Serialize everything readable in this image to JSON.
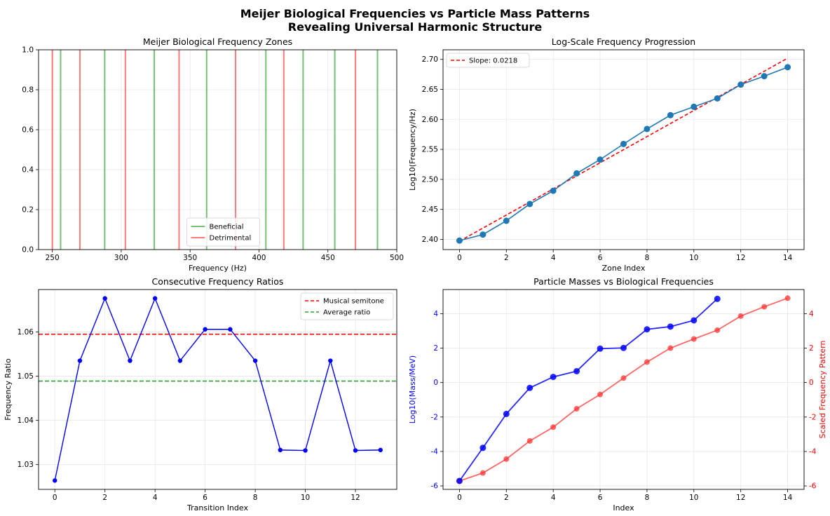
{
  "figure": {
    "title_line1": "Meijer Biological Frequencies vs Particle Mass Patterns",
    "title_line2": "Revealing Universal Harmonic Structure"
  },
  "chart_data": [
    {
      "type": "vlines",
      "title": "Meijer Biological Frequency Zones",
      "xlabel": "Frequency (Hz)",
      "ylabel": "",
      "xlim": [
        240,
        500
      ],
      "ylim": [
        0,
        1
      ],
      "xticks": [
        250,
        300,
        350,
        400,
        450,
        500
      ],
      "yticks": [
        0.0,
        0.2,
        0.4,
        0.6,
        0.8,
        1.0
      ],
      "grid": true,
      "legend_position": "lower center",
      "series": [
        {
          "name": "Beneficial",
          "color": "#2ca02c",
          "x": [
            256,
            288,
            324,
            362,
            405,
            432,
            455,
            486
          ]
        },
        {
          "name": "Detrimental",
          "color": "#ff3333",
          "x": [
            250,
            270,
            303,
            342,
            383,
            418,
            470
          ]
        }
      ]
    },
    {
      "type": "line",
      "title": "Log-Scale Frequency Progression",
      "xlabel": "Zone Index",
      "ylabel": "Log10(Frequency/Hz)",
      "xlim": [
        -0.7,
        14.7
      ],
      "ylim": [
        2.383,
        2.716
      ],
      "xticks": [
        0,
        2,
        4,
        6,
        8,
        10,
        12,
        14
      ],
      "yticks": [
        2.4,
        2.45,
        2.5,
        2.55,
        2.6,
        2.65,
        2.7
      ],
      "grid": true,
      "legend_position": "top-left",
      "series": [
        {
          "name": "",
          "color": "#1f77b4",
          "x": [
            0,
            1,
            2,
            3,
            4,
            5,
            6,
            7,
            8,
            9,
            10,
            11,
            12,
            13,
            14
          ],
          "y": [
            2.398,
            2.408,
            2.431,
            2.459,
            2.481,
            2.51,
            2.533,
            2.559,
            2.584,
            2.607,
            2.621,
            2.635,
            2.658,
            2.672,
            2.687
          ]
        },
        {
          "name": "Slope: 0.0218",
          "color": "#ff0000",
          "dashed": true,
          "x": [
            0,
            14
          ],
          "y": [
            2.397,
            2.702
          ]
        }
      ]
    },
    {
      "type": "line",
      "title": "Consecutive Frequency Ratios",
      "xlabel": "Transition Index",
      "ylabel": "Frequency Ratio",
      "xlim": [
        -0.65,
        13.65
      ],
      "ylim": [
        1.0244,
        1.0696
      ],
      "xticks": [
        0,
        2,
        4,
        6,
        8,
        10,
        12
      ],
      "yticks": [
        1.03,
        1.04,
        1.05,
        1.06
      ],
      "grid": true,
      "legend_position": "top-right",
      "series": [
        {
          "name": "",
          "color": "#0000ff",
          "x": [
            0,
            1,
            2,
            3,
            4,
            5,
            6,
            7,
            8,
            9,
            10,
            11,
            12,
            13
          ],
          "y": [
            1.0264,
            1.0535,
            1.0676,
            1.0535,
            1.0676,
            1.0535,
            1.0606,
            1.0606,
            1.0535,
            1.0333,
            1.0332,
            1.0535,
            1.0332,
            1.0333
          ]
        }
      ],
      "hlines": [
        {
          "name": "Musical semitone",
          "color": "#ff0000",
          "y": 1.0595
        },
        {
          "name": "Average ratio",
          "color": "#2ca02c",
          "y": 1.0489
        }
      ]
    },
    {
      "type": "dual-axis-line",
      "title": "Particle Masses vs Biological Frequencies",
      "xlabel": "Index",
      "ylabel": "Log10(Mass/MeV)",
      "ylabel_right": "Scaled Frequency Pattern",
      "xlim": [
        -0.7,
        14.7
      ],
      "ylim": [
        -6.2,
        5.4
      ],
      "ylim_right": [
        -6.2,
        5.4
      ],
      "xticks": [
        0,
        2,
        4,
        6,
        8,
        10,
        12,
        14
      ],
      "yticks": [
        -6,
        -4,
        -2,
        0,
        2,
        4
      ],
      "yticks_right": [
        -6,
        -4,
        -2,
        0,
        2,
        4
      ],
      "grid": true,
      "series": [
        {
          "name": "Log10(Mass/MeV)",
          "color": "#0000ff",
          "axis": "left",
          "x": [
            0,
            1,
            2,
            3,
            4,
            5,
            6,
            7,
            8,
            9,
            10,
            11
          ],
          "y": [
            -5.71,
            -3.79,
            -1.82,
            -0.31,
            0.33,
            0.66,
            1.97,
            2.01,
            3.09,
            3.25,
            3.61,
            4.86
          ]
        },
        {
          "name": "Scaled Frequency Pattern",
          "color": "#ff3333",
          "axis": "right",
          "x": [
            0,
            1,
            2,
            3,
            4,
            5,
            6,
            7,
            8,
            9,
            10,
            11,
            12,
            13,
            14
          ],
          "y": [
            -5.71,
            -5.25,
            -4.44,
            -3.39,
            -2.59,
            -1.52,
            -0.69,
            0.26,
            1.19,
            2.0,
            2.53,
            3.04,
            3.86,
            4.4,
            4.9
          ]
        }
      ]
    }
  ]
}
